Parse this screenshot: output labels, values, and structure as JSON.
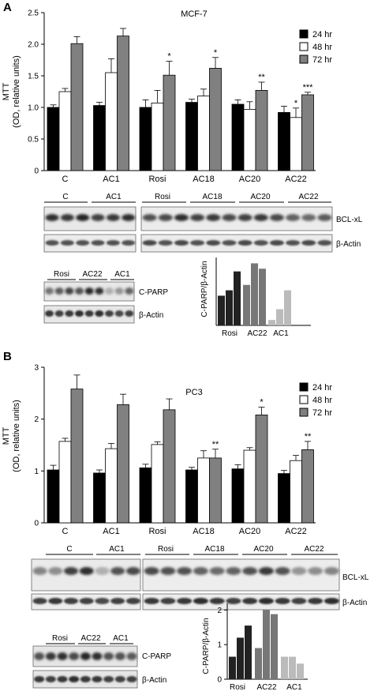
{
  "panels": [
    {
      "letter": "A",
      "chart_data": {
        "type": "bar",
        "title": "MCF-7",
        "ylabel_line1": "MTT",
        "ylabel_line2": "(OD, relative units)",
        "ylim": [
          0,
          2.5
        ],
        "yticks": [
          "0",
          "0.5",
          "1.0",
          "1.5",
          "2.0",
          "2.5"
        ],
        "tick_values": [
          0,
          0.5,
          1.0,
          1.5,
          2.0,
          2.5
        ],
        "categories": [
          "C",
          "AC1",
          "Rosi",
          "AC18",
          "AC20",
          "AC22"
        ],
        "series": [
          {
            "name": "24 hr",
            "color": "#000000",
            "values": [
              1.0,
              1.03,
              1.0,
              1.08,
              1.05,
              0.92
            ],
            "err": [
              0.04,
              0.05,
              0.12,
              0.05,
              0.07,
              0.1
            ]
          },
          {
            "name": "48 hr",
            "color": "#ffffff",
            "values": [
              1.25,
              1.55,
              1.07,
              1.18,
              0.97,
              0.84
            ],
            "err": [
              0.05,
              0.22,
              0.2,
              0.11,
              0.12,
              0.15
            ]
          },
          {
            "name": "72 hr",
            "color": "#808080",
            "values": [
              2.01,
              2.13,
              1.51,
              1.62,
              1.27,
              1.2
            ],
            "err": [
              0.11,
              0.12,
              0.22,
              0.17,
              0.13,
              0.04
            ]
          }
        ],
        "significance": [
          [
            "",
            "",
            ""
          ],
          [
            "",
            "",
            ""
          ],
          [
            "",
            "",
            "*"
          ],
          [
            "",
            "",
            "*"
          ],
          [
            "",
            "",
            "**"
          ],
          [
            "",
            "*",
            "***"
          ]
        ],
        "legend_position": "top-right"
      },
      "blot1": {
        "group_labels": [
          "C",
          "AC1",
          "Rosi",
          "AC18",
          "AC20",
          "AC22"
        ],
        "band_labels": [
          "BCL-xL",
          "β-Actin"
        ]
      },
      "blot2": {
        "group_labels": [
          "Rosi",
          "AC22",
          "AC1"
        ],
        "band_labels": [
          "C-PARP",
          "β-Actin"
        ]
      },
      "mini_chart": {
        "type": "bar",
        "ylabel": "C-PARP/β-Actin",
        "categories": [
          "Rosi",
          "AC22",
          "AC1"
        ],
        "values": [
          0.55,
          0.65,
          1.0,
          0.75,
          1.15,
          1.05,
          0.1,
          0.3,
          0.65
        ],
        "colors": [
          "#222222",
          "#222222",
          "#222222",
          "#777777",
          "#777777",
          "#777777",
          "#bbbbbb",
          "#bbbbbb",
          "#bbbbbb"
        ]
      }
    },
    {
      "letter": "B",
      "chart_data": {
        "type": "bar",
        "title": "PC3",
        "ylabel_line1": "MTT",
        "ylabel_line2": "(OD, relative units)",
        "ylim": [
          0,
          3
        ],
        "yticks": [
          "0",
          "1",
          "2",
          "3"
        ],
        "tick_values": [
          0,
          1,
          2,
          3
        ],
        "categories": [
          "C",
          "AC1",
          "Rosi",
          "AC18",
          "AC20",
          "AC22"
        ],
        "series": [
          {
            "name": "24 hr",
            "color": "#000000",
            "values": [
              1.02,
              0.96,
              1.06,
              1.02,
              1.04,
              0.95
            ],
            "err": [
              0.09,
              0.06,
              0.07,
              0.05,
              0.08,
              0.06
            ]
          },
          {
            "name": "48 hr",
            "color": "#ffffff",
            "values": [
              1.57,
              1.43,
              1.51,
              1.25,
              1.4,
              1.2
            ],
            "err": [
              0.06,
              0.1,
              0.05,
              0.14,
              0.05,
              0.1
            ]
          },
          {
            "name": "72 hr",
            "color": "#808080",
            "values": [
              2.58,
              2.28,
              2.18,
              1.25,
              2.08,
              1.41
            ],
            "err": [
              0.27,
              0.2,
              0.21,
              0.17,
              0.15,
              0.16
            ]
          }
        ],
        "significance": [
          [
            "",
            "",
            ""
          ],
          [
            "",
            "",
            ""
          ],
          [
            "",
            "",
            ""
          ],
          [
            "",
            "",
            "**"
          ],
          [
            "",
            "",
            "*"
          ],
          [
            "",
            "",
            "**"
          ]
        ],
        "legend_position": "top-right"
      },
      "blot1": {
        "group_labels": [
          "C",
          "AC1",
          "Rosi",
          "AC18",
          "AC20",
          "AC22"
        ],
        "band_labels": [
          "BCL-xL",
          "β-Actin"
        ]
      },
      "blot2": {
        "group_labels": [
          "Rosi",
          "AC22",
          "AC1"
        ],
        "band_labels": [
          "C-PARP",
          "β-Actin"
        ]
      },
      "mini_chart": {
        "type": "bar",
        "ylabel": "C-PARP/β-Actin",
        "yticks": [
          "0",
          "1",
          "2"
        ],
        "tick_values": [
          0,
          1,
          2
        ],
        "ylim": [
          0,
          2.1
        ],
        "categories": [
          "Rosi",
          "AC22",
          "AC1"
        ],
        "values": [
          0.65,
          1.2,
          1.55,
          0.9,
          2.0,
          1.88,
          0.65,
          0.65,
          0.45
        ],
        "colors": [
          "#222222",
          "#222222",
          "#222222",
          "#777777",
          "#777777",
          "#777777",
          "#bbbbbb",
          "#bbbbbb",
          "#bbbbbb"
        ]
      }
    }
  ]
}
